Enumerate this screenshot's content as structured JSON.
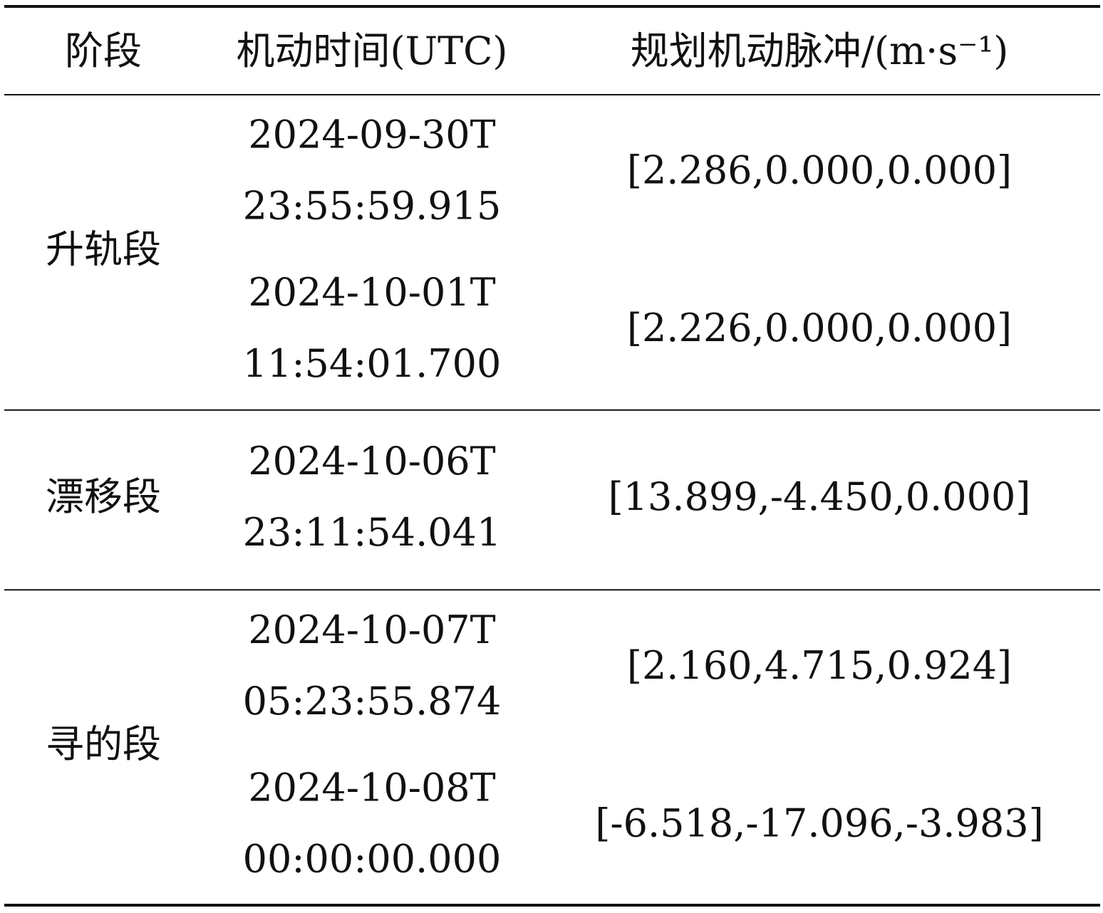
{
  "table": {
    "header": [
      "阶段",
      "机动时间(UTC)",
      "规划机动脉冲/(m·s⁻¹)"
    ],
    "groups": [
      {
        "stage": "升轨段",
        "maneuvers": [
          {
            "date": "2024-09-30T",
            "clock": "23:55:59.915",
            "impulse": "[2.286,0.000,0.000]"
          },
          {
            "date": "2024-10-01T",
            "clock": "11:54:01.700",
            "impulse": "[2.226,0.000,0.000]"
          }
        ]
      },
      {
        "stage": "漂移段",
        "maneuvers": [
          {
            "date": "2024-10-06T",
            "clock": "23:11:54.041",
            "impulse": "[13.899,-4.450,0.000]"
          }
        ]
      },
      {
        "stage": "寻的段",
        "maneuvers": [
          {
            "date": "2024-10-07T",
            "clock": "05:23:55.874",
            "impulse": "[2.160,4.715,0.924]"
          },
          {
            "date": "2024-10-08T",
            "clock": "00:00:00.000",
            "impulse": "[-6.518,-17.096,-3.983]"
          }
        ]
      }
    ]
  }
}
